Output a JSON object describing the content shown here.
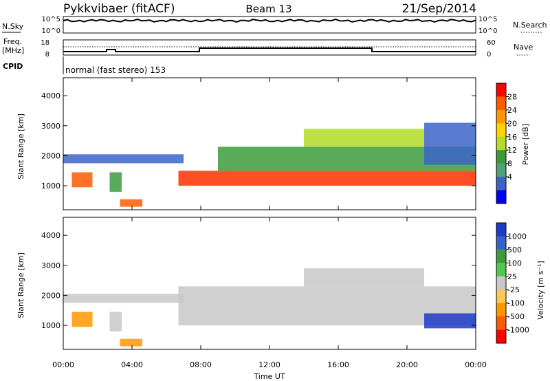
{
  "header": {
    "radar": "Pykkvibaer (fitACF)",
    "beam": "Beam 13",
    "date": "21/Sep/2014"
  },
  "strips": {
    "nsky_label": "N.Sky",
    "nsearch_label": "N.Search",
    "nsky_ticks": [
      "10^5",
      "10^0"
    ],
    "nsearch_ticks": [
      "10^5",
      "10^0"
    ],
    "freq_label": "Freq.",
    "freq_unit": "[MHz]",
    "freq_ticks": [
      "18",
      "8"
    ],
    "nave_label": "Nave",
    "nave_ticks": [
      "60",
      "0"
    ],
    "cpid_label": "CPID",
    "cpid_text": "normal (fast stereo) 153"
  },
  "chart_data": [
    {
      "type": "heatmap",
      "name": "Power",
      "ylabel": "Slant Range [km]",
      "yticks": [
        1000,
        2000,
        3000,
        4000
      ],
      "ylim": [
        200,
        4600
      ],
      "xlim": [
        0,
        24
      ],
      "colorbar_label": "Power [dB]",
      "colorbar_ticks": [
        "28",
        "24",
        "20",
        "16",
        "12",
        "8",
        "4"
      ],
      "colorbar_colors": [
        "#ff0000",
        "#ff5a00",
        "#ff9600",
        "#ffd200",
        "#b4dc28",
        "#3c9c3c",
        "#50a078",
        "#3c64c8",
        "#0000ff"
      ],
      "echo_bands": [
        {
          "t0": 0.0,
          "t1": 7.0,
          "r0": 1750,
          "r1": 2050,
          "level": "#3c64c8"
        },
        {
          "t0": 0.5,
          "t1": 1.7,
          "r0": 950,
          "r1": 1450,
          "level": "#ff5a00"
        },
        {
          "t0": 2.7,
          "t1": 3.4,
          "r0": 800,
          "r1": 1450,
          "level": "#3c9c3c"
        },
        {
          "t0": 3.3,
          "t1": 4.6,
          "r0": 300,
          "r1": 550,
          "level": "#ff5a00"
        },
        {
          "t0": 6.7,
          "t1": 24.0,
          "r0": 1000,
          "r1": 1500,
          "level": "#ff3000"
        },
        {
          "t0": 9.0,
          "t1": 24.0,
          "r0": 1500,
          "r1": 2300,
          "level": "#3c9c3c"
        },
        {
          "t0": 14.0,
          "t1": 21.0,
          "r0": 2300,
          "r1": 2900,
          "level": "#b4dc28"
        },
        {
          "t0": 21.0,
          "t1": 24.0,
          "r0": 1700,
          "r1": 3100,
          "level": "#3c64c8"
        }
      ]
    },
    {
      "type": "heatmap",
      "name": "Velocity",
      "ylabel": "Slant Range [km]",
      "yticks": [
        1000,
        2000,
        3000,
        4000
      ],
      "ylim": [
        200,
        4600
      ],
      "xlim": [
        0,
        24
      ],
      "colorbar_label": "Velocity [m s⁻¹]",
      "colorbar_ticks": [
        "1000",
        "500",
        "100",
        "25",
        "-25",
        "-100",
        "-500",
        "-1000"
      ],
      "colorbar_colors": [
        "#1e3cc8",
        "#3264c8",
        "#3c9c3c",
        "#50c850",
        "#c8c8c8",
        "#ffc850",
        "#ff9600",
        "#ff5a00",
        "#ff0000"
      ],
      "echo_bands": [
        {
          "t0": 0.0,
          "t1": 7.0,
          "r0": 1750,
          "r1": 2050,
          "level": "#c8c8c8"
        },
        {
          "t0": 0.5,
          "t1": 1.7,
          "r0": 950,
          "r1": 1450,
          "level": "#ff9600"
        },
        {
          "t0": 2.7,
          "t1": 3.4,
          "r0": 800,
          "r1": 1450,
          "level": "#c8c8c8"
        },
        {
          "t0": 3.3,
          "t1": 4.6,
          "r0": 300,
          "r1": 550,
          "level": "#ff9600"
        },
        {
          "t0": 6.7,
          "t1": 24.0,
          "r0": 1000,
          "r1": 2300,
          "level": "#c8c8c8"
        },
        {
          "t0": 14.0,
          "t1": 21.0,
          "r0": 2300,
          "r1": 2900,
          "level": "#c8c8c8"
        },
        {
          "t0": 21.0,
          "t1": 24.0,
          "r0": 900,
          "r1": 1400,
          "level": "#1e3cc8"
        }
      ]
    }
  ],
  "xaxis": {
    "tick_labels": [
      "00:00",
      "04:00",
      "08:00",
      "12:00",
      "16:00",
      "20:00",
      "00:00"
    ],
    "label": "Time UT"
  }
}
